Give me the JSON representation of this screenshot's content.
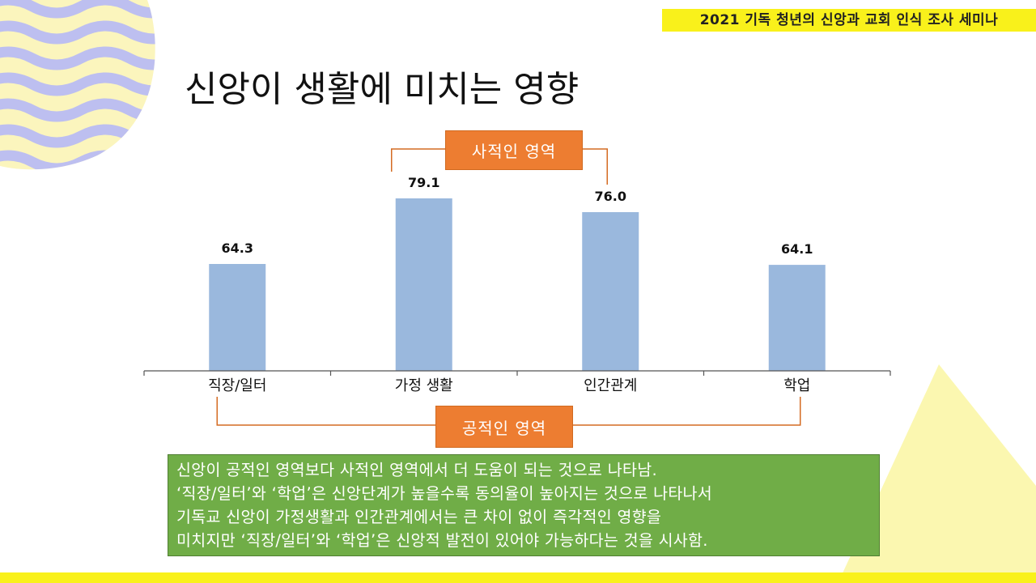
{
  "header": {
    "banner": "2021 기독 청년의 신앙과 교회 인식 조사 세미나",
    "title": "신앙이 생활에 미치는 영향"
  },
  "labels": {
    "private_area": "사적인 영역",
    "public_area": "공적인 영역"
  },
  "summary": {
    "lines": [
      "신앙이 공적인 영역보다 사적인 영역에서 더 도움이 되는 것으로 나타남.",
      "‘직장/일터’와 ‘학업’은 신앙단계가 높을수록 동의율이 높아지는 것으로 나타나서",
      "기독교 신앙이 가정생활과 인간관계에서는 큰 차이 없이 즉각적인 영향을",
      "미치지만 ‘직장/일터’와 ‘학업’은 신앙적 발전이 있어야 가능하다는 것을 시사함."
    ]
  },
  "colors": {
    "bar": "#9ab8dd",
    "banner": "#f9f11b",
    "orange": "#ed7d31",
    "green": "#70ad47",
    "wave": "#bdbff0"
  },
  "chart_data": {
    "type": "bar",
    "categories": [
      "직장/일터",
      "가정 생활",
      "인간관계",
      "학업"
    ],
    "values": [
      64.3,
      79.1,
      76.0,
      64.1
    ],
    "value_labels": [
      "64.3",
      "79.1",
      "76.0",
      "64.1"
    ],
    "title": "",
    "xlabel": "",
    "ylabel": "",
    "ylim": [
      30,
      90
    ],
    "groups": [
      {
        "label_key": "private_area",
        "categories": [
          "가정 생활",
          "인간관계"
        ]
      },
      {
        "label_key": "public_area",
        "categories": [
          "직장/일터",
          "학업"
        ]
      }
    ]
  }
}
